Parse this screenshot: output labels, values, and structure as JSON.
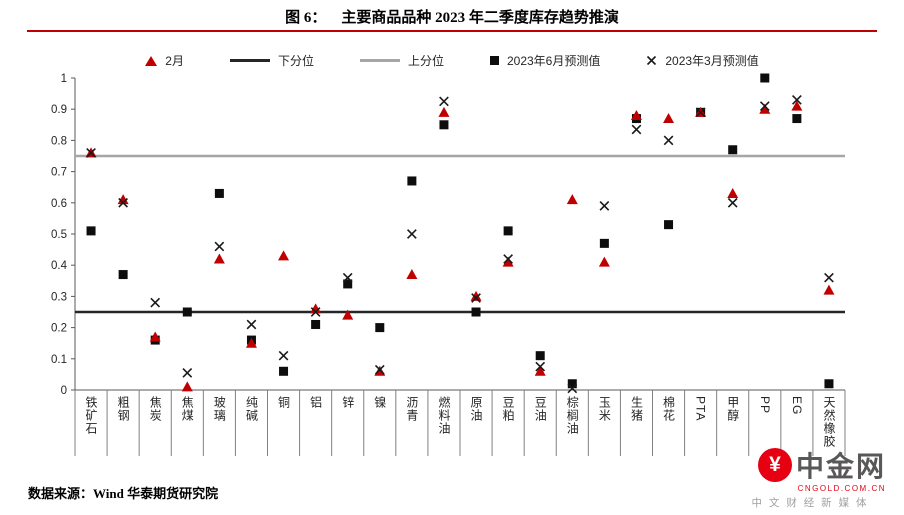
{
  "title": "图 6：    主要商品品种 2023 年二季度库存趋势推演",
  "legend": [
    {
      "label": "2月"
    },
    {
      "label": "下分位"
    },
    {
      "label": "上分位"
    },
    {
      "label": "2023年6月预测值"
    },
    {
      "label": "2023年3月预测值"
    }
  ],
  "chart_data": {
    "type": "scatter",
    "title": "主要商品品种2023年二季度库存趋势推演",
    "categories": [
      "铁矿石",
      "粗钢",
      "焦炭",
      "焦煤",
      "玻璃",
      "纯碱",
      "铜",
      "铝",
      "锌",
      "镍",
      "沥青",
      "燃料油",
      "原油",
      "豆粕",
      "豆油",
      "棕榈油",
      "玉米",
      "生猪",
      "棉花",
      "PTA",
      "甲醇",
      "PP",
      "EG",
      "天然橡胶"
    ],
    "series": [
      {
        "name": "2月",
        "marker": "triangle",
        "color": "#c00000",
        "values": [
          0.76,
          0.61,
          0.17,
          0.01,
          0.42,
          0.15,
          0.43,
          0.26,
          0.24,
          0.06,
          0.37,
          0.89,
          0.3,
          0.41,
          0.06,
          0.61,
          0.41,
          0.88,
          0.87,
          0.89,
          0.63,
          0.9,
          0.91,
          0.32
        ]
      },
      {
        "name": "2023年6月预测值",
        "marker": "square",
        "color": "#0d0d0d",
        "values": [
          0.51,
          0.37,
          0.16,
          0.25,
          0.63,
          0.16,
          0.06,
          0.21,
          0.34,
          0.2,
          0.67,
          0.85,
          0.25,
          0.51,
          0.11,
          0.02,
          0.47,
          0.87,
          0.53,
          0.89,
          0.77,
          1.0,
          0.87,
          0.02
        ]
      },
      {
        "name": "2023年3月预测值",
        "marker": "x",
        "color": "#1a1a1a",
        "values": [
          0.76,
          0.6,
          0.28,
          0.055,
          0.46,
          0.21,
          0.11,
          0.25,
          0.36,
          0.065,
          0.5,
          0.925,
          0.295,
          0.42,
          0.075,
          0.005,
          0.59,
          0.835,
          0.8,
          0.89,
          0.6,
          0.91,
          0.93,
          0.36
        ]
      }
    ],
    "reference_lines": [
      {
        "name": "下分位",
        "value": 0.25,
        "color": "#262626"
      },
      {
        "name": "上分位",
        "value": 0.75,
        "color": "#a6a6a6"
      }
    ],
    "ylim": [
      0,
      1
    ],
    "yticks": [
      {
        "v": 0,
        "label": "0"
      },
      {
        "v": 0.1,
        "label": "0.1"
      },
      {
        "v": 0.2,
        "label": "0.2"
      },
      {
        "v": 0.3,
        "label": "0.3"
      },
      {
        "v": 0.4,
        "label": "0.4"
      },
      {
        "v": 0.5,
        "label": "0.5"
      },
      {
        "v": 0.6,
        "label": "0.6"
      },
      {
        "v": 0.7,
        "label": "0.7"
      },
      {
        "v": 0.8,
        "label": "0.8"
      },
      {
        "v": 0.9,
        "label": "0.9"
      },
      {
        "v": 1,
        "label": "1"
      }
    ],
    "legend_position": "top",
    "grid": false
  },
  "footer": {
    "source": "数据来源：Wind 华泰期货研究院"
  },
  "branding": {
    "brand": "中金网",
    "icon_glyph": "¥",
    "url": "CNGOLD.COM.CN",
    "tagline": "中 文 财 经 新 媒 体",
    "accent_color": "#e60012"
  },
  "accent": {
    "title_rule_color": "#c00000"
  }
}
